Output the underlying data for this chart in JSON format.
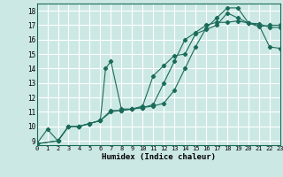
{
  "title": "",
  "xlabel": "Humidex (Indice chaleur)",
  "xlim": [
    0,
    23
  ],
  "ylim": [
    8.7,
    18.5
  ],
  "xticks": [
    0,
    1,
    2,
    3,
    4,
    5,
    6,
    7,
    8,
    9,
    10,
    11,
    12,
    13,
    14,
    15,
    16,
    17,
    18,
    19,
    20,
    21,
    22,
    23
  ],
  "yticks": [
    9,
    10,
    11,
    12,
    13,
    14,
    15,
    16,
    17,
    18
  ],
  "background_color": "#cce8e4",
  "grid_color": "#ffffff",
  "line_color": "#1a6b5a",
  "lines": [
    {
      "x": [
        0,
        1,
        2,
        3,
        4,
        5,
        6,
        6.5,
        7,
        8,
        9,
        10,
        11,
        12,
        13,
        14,
        15,
        16,
        17,
        18,
        19,
        20,
        21,
        22,
        23
      ],
      "y": [
        8.8,
        9.8,
        9.0,
        10.0,
        10.0,
        10.2,
        10.4,
        14.0,
        14.5,
        11.2,
        11.2,
        11.4,
        13.5,
        14.2,
        14.9,
        15.0,
        16.4,
        16.7,
        17.0,
        17.85,
        17.5,
        17.15,
        16.9,
        17.0,
        17.0
      ]
    },
    {
      "x": [
        0,
        2,
        3,
        4,
        5,
        6,
        7,
        8,
        9,
        10,
        11,
        12,
        13,
        14,
        15,
        16,
        17,
        18,
        19,
        20,
        21,
        22,
        23
      ],
      "y": [
        8.8,
        9.0,
        10.0,
        10.0,
        10.2,
        10.4,
        11.1,
        11.1,
        11.2,
        11.3,
        11.5,
        13.0,
        14.5,
        16.0,
        16.5,
        17.0,
        17.2,
        17.2,
        17.3,
        17.15,
        17.0,
        15.5,
        15.4
      ]
    },
    {
      "x": [
        0,
        2,
        3,
        4,
        5,
        6,
        7,
        8,
        9,
        10,
        11,
        12,
        13,
        14,
        15,
        16,
        17,
        18,
        19,
        20,
        21,
        22,
        23
      ],
      "y": [
        8.8,
        9.0,
        10.0,
        10.0,
        10.2,
        10.4,
        11.0,
        11.1,
        11.2,
        11.3,
        11.4,
        11.6,
        12.5,
        14.0,
        15.5,
        16.8,
        17.5,
        18.2,
        18.2,
        17.15,
        17.1,
        16.85,
        16.85
      ]
    }
  ]
}
